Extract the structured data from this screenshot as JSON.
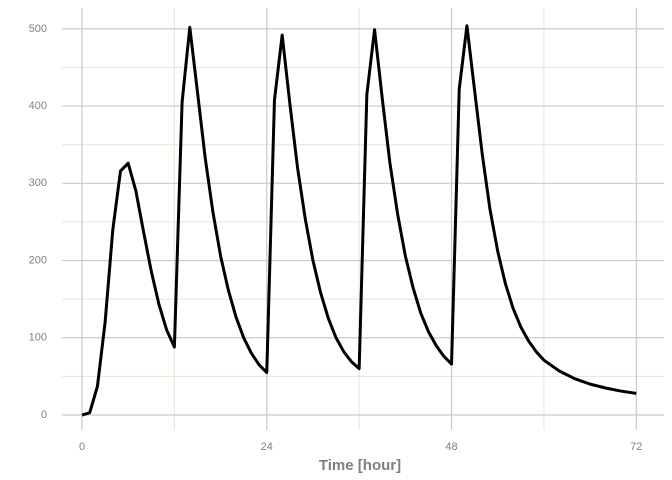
{
  "chart_data": {
    "type": "line",
    "x_label": "Time [hour]",
    "x": [
      0,
      1,
      2,
      3,
      4,
      5,
      6,
      7,
      8,
      9,
      10,
      11,
      12,
      13,
      14,
      15,
      16,
      17,
      18,
      19,
      20,
      21,
      22,
      23,
      24,
      25,
      26,
      27,
      28,
      29,
      30,
      31,
      32,
      33,
      34,
      35,
      36,
      37,
      38,
      39,
      40,
      41,
      42,
      43,
      44,
      45,
      46,
      47,
      48,
      49,
      50,
      51,
      52,
      53,
      54,
      55,
      56,
      57,
      58,
      59,
      60,
      62,
      64,
      66,
      68,
      70,
      72
    ],
    "series": [
      {
        "color": "#000000",
        "values": [
          0,
          3,
          37,
          120,
          240,
          316,
          326,
          290,
          237,
          186,
          143,
          110,
          88,
          405,
          502,
          418,
          333,
          263,
          206,
          162,
          127,
          100,
          80,
          65,
          55,
          408,
          492,
          403,
          320,
          254,
          200,
          158,
          125,
          100,
          82,
          69,
          60,
          415,
          499,
          410,
          326,
          260,
          206,
          165,
          132,
          108,
          90,
          76,
          66,
          422,
          504,
          420,
          337,
          266,
          212,
          170,
          138,
          114,
          96,
          82,
          71,
          57,
          47,
          40,
          35,
          31,
          28
        ]
      }
    ],
    "xlim": [
      -2.6,
      75.6
    ],
    "ylim": [
      -19.4,
      527
    ],
    "xticks": [
      0,
      24,
      48,
      72
    ],
    "yticks": [
      0,
      100,
      200,
      300,
      400,
      500
    ],
    "xminorticks": [
      12,
      36,
      60
    ],
    "yminorticks": [
      50,
      150,
      250,
      350,
      450
    ],
    "grid": true
  }
}
